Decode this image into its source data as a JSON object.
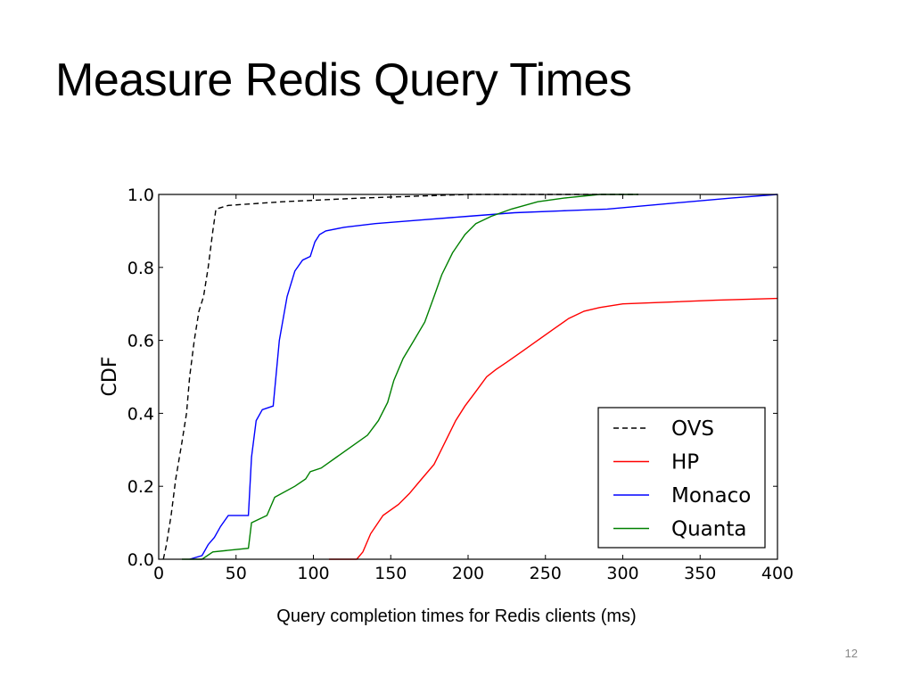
{
  "slide": {
    "title": "Measure Redis Query Times",
    "page_number": "12"
  },
  "chart_data": {
    "type": "line",
    "title": "",
    "xlabel": "Query completion times for Redis clients (ms)",
    "ylabel": "CDF",
    "xlim": [
      0,
      400
    ],
    "ylim": [
      0.0,
      1.0
    ],
    "xticks": [
      "0",
      "50",
      "100",
      "150",
      "200",
      "250",
      "300",
      "350",
      "400"
    ],
    "yticks": [
      "0.0",
      "0.2",
      "0.4",
      "0.6",
      "0.8",
      "1.0"
    ],
    "grid": false,
    "legend_position": "lower-right",
    "series": [
      {
        "name": "OVS",
        "color": "#000000",
        "dash": true,
        "points": [
          [
            3,
            0.0
          ],
          [
            5,
            0.04
          ],
          [
            8,
            0.12
          ],
          [
            11,
            0.22
          ],
          [
            15,
            0.32
          ],
          [
            18,
            0.4
          ],
          [
            20,
            0.5
          ],
          [
            23,
            0.6
          ],
          [
            26,
            0.68
          ],
          [
            29,
            0.72
          ],
          [
            32,
            0.8
          ],
          [
            35,
            0.9
          ],
          [
            37,
            0.96
          ],
          [
            45,
            0.97
          ],
          [
            80,
            0.98
          ],
          [
            130,
            0.99
          ],
          [
            200,
            1.0
          ],
          [
            310,
            1.0
          ]
        ]
      },
      {
        "name": "HP",
        "color": "#ff0000",
        "dash": false,
        "points": [
          [
            110,
            0.0
          ],
          [
            128,
            0.0
          ],
          [
            132,
            0.02
          ],
          [
            137,
            0.07
          ],
          [
            145,
            0.12
          ],
          [
            155,
            0.15
          ],
          [
            162,
            0.18
          ],
          [
            170,
            0.22
          ],
          [
            178,
            0.26
          ],
          [
            185,
            0.32
          ],
          [
            192,
            0.38
          ],
          [
            198,
            0.42
          ],
          [
            205,
            0.46
          ],
          [
            212,
            0.5
          ],
          [
            218,
            0.52
          ],
          [
            225,
            0.54
          ],
          [
            235,
            0.57
          ],
          [
            245,
            0.6
          ],
          [
            255,
            0.63
          ],
          [
            265,
            0.66
          ],
          [
            275,
            0.68
          ],
          [
            285,
            0.69
          ],
          [
            300,
            0.7
          ],
          [
            330,
            0.705
          ],
          [
            360,
            0.71
          ],
          [
            400,
            0.715
          ]
        ]
      },
      {
        "name": "Monaco",
        "color": "#0000ff",
        "dash": false,
        "points": [
          [
            20,
            0.0
          ],
          [
            28,
            0.01
          ],
          [
            32,
            0.04
          ],
          [
            36,
            0.06
          ],
          [
            40,
            0.09
          ],
          [
            45,
            0.12
          ],
          [
            58,
            0.12
          ],
          [
            60,
            0.28
          ],
          [
            63,
            0.38
          ],
          [
            67,
            0.41
          ],
          [
            74,
            0.42
          ],
          [
            78,
            0.6
          ],
          [
            83,
            0.72
          ],
          [
            88,
            0.79
          ],
          [
            93,
            0.82
          ],
          [
            98,
            0.83
          ],
          [
            101,
            0.87
          ],
          [
            104,
            0.89
          ],
          [
            108,
            0.9
          ],
          [
            120,
            0.91
          ],
          [
            140,
            0.92
          ],
          [
            170,
            0.93
          ],
          [
            200,
            0.94
          ],
          [
            230,
            0.95
          ],
          [
            260,
            0.955
          ],
          [
            290,
            0.96
          ],
          [
            330,
            0.975
          ],
          [
            370,
            0.99
          ],
          [
            400,
            1.0
          ]
        ]
      },
      {
        "name": "Quanta",
        "color": "#008000",
        "dash": false,
        "points": [
          [
            15,
            0.0
          ],
          [
            28,
            0.0
          ],
          [
            35,
            0.02
          ],
          [
            58,
            0.03
          ],
          [
            60,
            0.1
          ],
          [
            70,
            0.12
          ],
          [
            75,
            0.17
          ],
          [
            88,
            0.2
          ],
          [
            95,
            0.22
          ],
          [
            98,
            0.24
          ],
          [
            105,
            0.25
          ],
          [
            115,
            0.28
          ],
          [
            125,
            0.31
          ],
          [
            135,
            0.34
          ],
          [
            142,
            0.38
          ],
          [
            148,
            0.43
          ],
          [
            152,
            0.49
          ],
          [
            158,
            0.55
          ],
          [
            165,
            0.6
          ],
          [
            172,
            0.65
          ],
          [
            178,
            0.72
          ],
          [
            183,
            0.78
          ],
          [
            190,
            0.84
          ],
          [
            198,
            0.89
          ],
          [
            205,
            0.92
          ],
          [
            215,
            0.94
          ],
          [
            228,
            0.96
          ],
          [
            245,
            0.98
          ],
          [
            262,
            0.99
          ],
          [
            285,
            1.0
          ],
          [
            310,
            1.0
          ]
        ]
      }
    ]
  }
}
